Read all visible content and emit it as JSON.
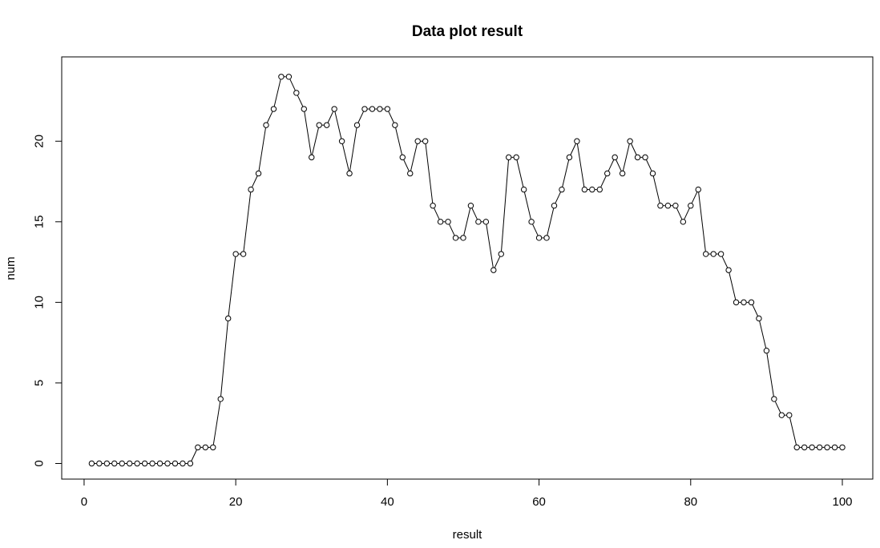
{
  "chart_data": {
    "type": "line",
    "title": "Data plot result",
    "xlabel": "result",
    "ylabel": "num",
    "xlim": [
      1,
      100
    ],
    "ylim": [
      0,
      24
    ],
    "x_ticks": [
      0,
      20,
      40,
      60,
      80,
      100
    ],
    "y_ticks": [
      0,
      5,
      10,
      15,
      20
    ],
    "x_tick_labels": [
      "0",
      "20",
      "40",
      "60",
      "80",
      "100"
    ],
    "y_tick_labels": [
      "0",
      "5",
      "10",
      "15",
      "20"
    ],
    "grid": false,
    "marker": "open-circle",
    "series": [
      {
        "name": "num",
        "x": [
          1,
          2,
          3,
          4,
          5,
          6,
          7,
          8,
          9,
          10,
          11,
          12,
          13,
          14,
          15,
          16,
          17,
          18,
          19,
          20,
          21,
          22,
          23,
          24,
          25,
          26,
          27,
          28,
          29,
          30,
          31,
          32,
          33,
          34,
          35,
          36,
          37,
          38,
          39,
          40,
          41,
          42,
          43,
          44,
          45,
          46,
          47,
          48,
          49,
          50,
          51,
          52,
          53,
          54,
          55,
          56,
          57,
          58,
          59,
          60,
          61,
          62,
          63,
          64,
          65,
          66,
          67,
          68,
          69,
          70,
          71,
          72,
          73,
          74,
          75,
          76,
          77,
          78,
          79,
          80,
          81,
          82,
          83,
          84,
          85,
          86,
          87,
          88,
          89,
          90,
          91,
          92,
          93,
          94,
          95,
          96,
          97,
          98,
          99,
          100
        ],
        "values": [
          0,
          0,
          0,
          0,
          0,
          0,
          0,
          0,
          0,
          0,
          0,
          0,
          0,
          0,
          1,
          1,
          1,
          4,
          9,
          13,
          13,
          17,
          18,
          21,
          22,
          24,
          24,
          23,
          22,
          19,
          21,
          21,
          22,
          20,
          18,
          21,
          22,
          22,
          22,
          22,
          21,
          19,
          18,
          20,
          20,
          16,
          15,
          15,
          14,
          14,
          16,
          15,
          15,
          12,
          13,
          19,
          19,
          17,
          15,
          14,
          14,
          16,
          17,
          19,
          20,
          17,
          17,
          17,
          18,
          19,
          18,
          20,
          19,
          19,
          18,
          16,
          16,
          16,
          15,
          16,
          17,
          13,
          13,
          13,
          12,
          10,
          10,
          10,
          9,
          7,
          4,
          3,
          3,
          1,
          1,
          1,
          1,
          1,
          1,
          1
        ]
      }
    ]
  }
}
